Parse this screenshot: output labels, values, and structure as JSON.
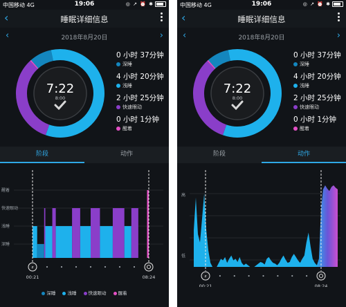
{
  "status": {
    "carrier": "中国移动  4G",
    "time": "19:06",
    "icons": "◎ ↗ ⏰ ✱"
  },
  "header": {
    "title": "睡眠详细信息"
  },
  "date": "2018年8月20日",
  "summary": {
    "duration": "7:22",
    "sub": "8:00"
  },
  "stages": [
    {
      "value": "0 小时 37分钟",
      "label": "深睡",
      "color": "#1486be",
      "minutes": 37
    },
    {
      "value": "4 小时 20分钟",
      "label": "浅睡",
      "color": "#1eb1ec",
      "minutes": 260
    },
    {
      "value": "2 小时 25分钟",
      "label": "快速眼动",
      "color": "#8a3ec9",
      "minutes": 145
    },
    {
      "value": "0 小时 1分钟",
      "label": "醒着",
      "color": "#e34fc4",
      "minutes": 1
    }
  ],
  "tabs": {
    "stage": "阶段",
    "motion": "动作"
  },
  "stage_chart": {
    "ylabels": [
      "醒着",
      "快速眼动",
      "浅睡",
      "深睡"
    ],
    "start_time": "00:21",
    "end_time": "08:24",
    "segments": [
      {
        "stage": "浅睡",
        "start": 0.0,
        "end": 0.04
      },
      {
        "stage": "深睡",
        "start": 0.04,
        "end": 0.1
      },
      {
        "stage": "快速眼动",
        "start": 0.1,
        "end": 0.11
      },
      {
        "stage": "浅睡",
        "start": 0.11,
        "end": 0.17
      },
      {
        "stage": "快速眼动",
        "start": 0.17,
        "end": 0.2
      },
      {
        "stage": "浅睡",
        "start": 0.2,
        "end": 0.34
      },
      {
        "stage": "快速眼动",
        "start": 0.34,
        "end": 0.41
      },
      {
        "stage": "浅睡",
        "start": 0.41,
        "end": 0.5
      },
      {
        "stage": "快速眼动",
        "start": 0.5,
        "end": 0.58
      },
      {
        "stage": "浅睡",
        "start": 0.58,
        "end": 0.69
      },
      {
        "stage": "快速眼动",
        "start": 0.69,
        "end": 0.79
      },
      {
        "stage": "浅睡",
        "start": 0.79,
        "end": 0.85
      },
      {
        "stage": "快速眼动",
        "start": 0.85,
        "end": 0.91
      },
      {
        "stage": "醒着",
        "start": 0.985,
        "end": 1.0
      }
    ]
  },
  "motion_chart": {
    "ylabels": [
      "高",
      "低"
    ],
    "start_time": "00:21",
    "end_time": "08:24",
    "values": [
      0.45,
      0.85,
      0.4,
      0.3,
      0.6,
      0.9,
      0.45,
      0.2,
      0.05,
      0.0,
      0.0,
      0.0,
      0.05,
      0.1,
      0.08,
      0.12,
      0.05,
      0.1,
      0.14,
      0.08,
      0.1,
      0.06,
      0.12,
      0.05,
      0.02,
      0.04,
      0.02,
      0.0,
      0.0,
      0.0,
      0.02,
      0.04,
      0.06,
      0.05,
      0.03,
      0.1,
      0.12,
      0.08,
      0.05,
      0.04,
      0.02,
      0.05,
      0.1,
      0.14,
      0.09,
      0.05,
      0.06,
      0.12,
      0.16,
      0.12,
      0.08,
      0.05,
      0.1,
      0.14,
      0.3,
      0.42,
      0.25,
      0.1,
      0.05,
      0.02,
      0.1,
      0.7,
      0.95,
      1.0,
      0.96,
      0.93,
      0.98,
      1.0,
      0.97,
      0.95
    ]
  },
  "legend": [
    {
      "label": "深睡",
      "color": "#1486be"
    },
    {
      "label": "浅睡",
      "color": "#1eb1ec"
    },
    {
      "label": "快速眼动",
      "color": "#8a3ec9"
    },
    {
      "label": "醒着",
      "color": "#e34fc4"
    }
  ]
}
